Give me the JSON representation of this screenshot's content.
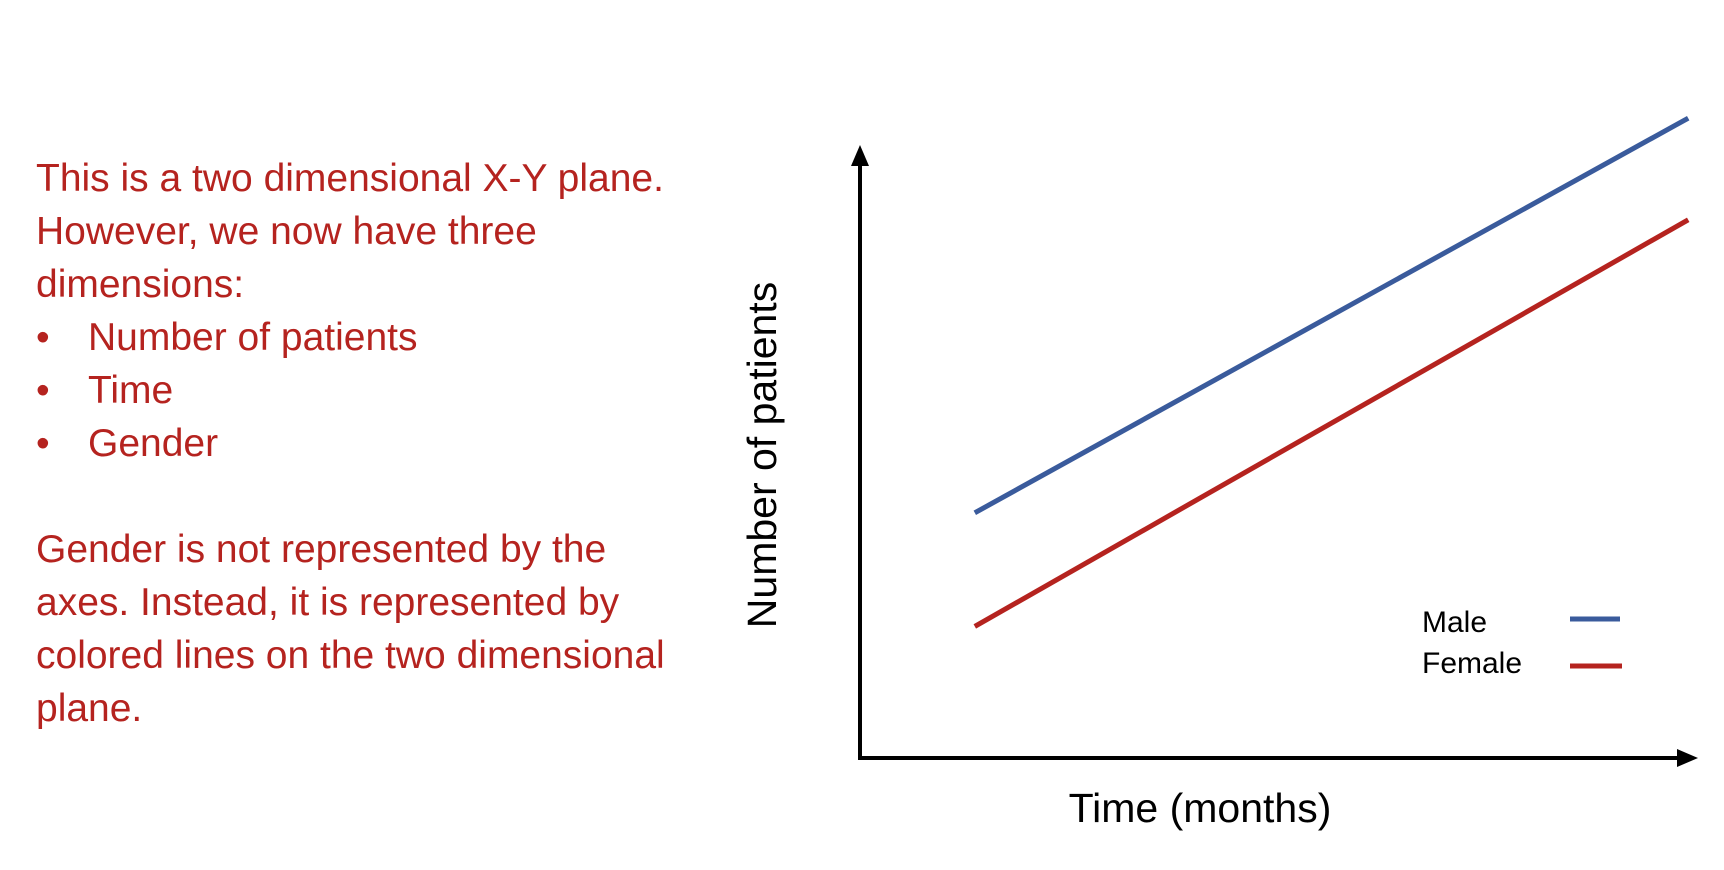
{
  "explanation": {
    "intro": "This is a two dimensional X-Y plane. However, we now have three dimensions:",
    "bullets": [
      "Number of patients",
      "Time",
      "Gender"
    ],
    "bullet_symbol": "•",
    "closing": "Gender is not represented by the axes. Instead, it is represented by colored lines on the two dimensional plane."
  },
  "colors": {
    "text": "#b5231f",
    "axis": "#000000"
  },
  "chart_data": {
    "type": "line",
    "title": "",
    "xlabel": "Time (months)",
    "ylabel": "Number of patients",
    "xlim": [
      0,
      10
    ],
    "ylim": [
      0,
      10
    ],
    "grid": false,
    "legend_position": "bottom-right",
    "series": [
      {
        "name": "Male",
        "color": "#3a5b9c",
        "x": [
          1.4,
          10.1
        ],
        "y": [
          4.1,
          10.7
        ]
      },
      {
        "name": "Female",
        "color": "#b5231f",
        "x": [
          1.4,
          10.1
        ],
        "y": [
          2.2,
          9.0
        ]
      }
    ]
  }
}
